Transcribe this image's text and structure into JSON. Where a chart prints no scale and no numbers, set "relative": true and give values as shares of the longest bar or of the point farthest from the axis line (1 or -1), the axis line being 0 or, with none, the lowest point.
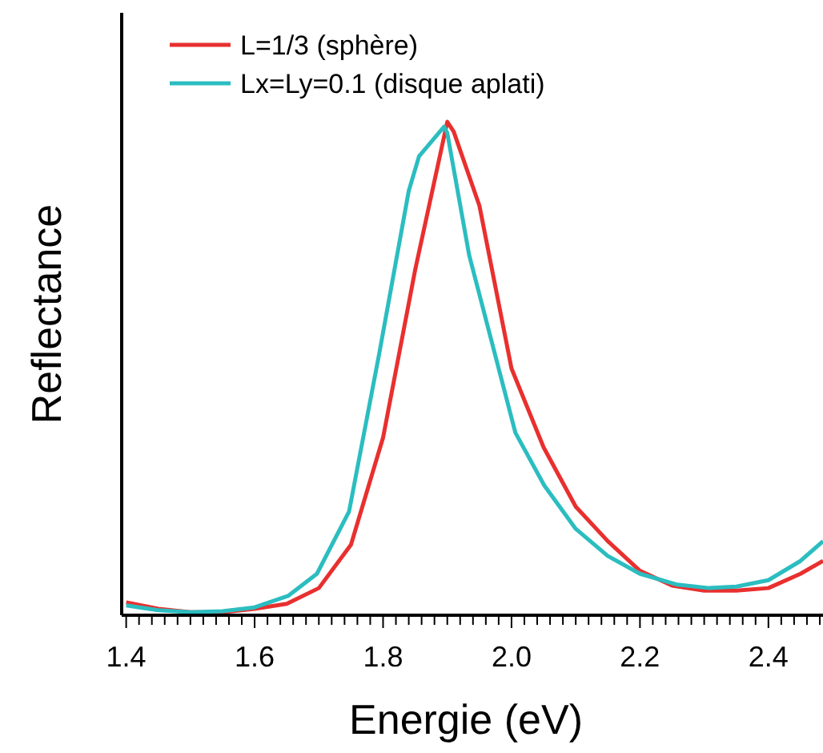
{
  "chart_data": {
    "type": "line",
    "relative": true,
    "xlabel": "Energie (eV)",
    "ylabel": "Reflectance",
    "legend": "top left",
    "grid": false,
    "marker": "none",
    "line_style": "solid",
    "xlim": [
      1.393,
      2.485
    ],
    "xticks": [
      1.4,
      {
        "value": 1.42,
        "label": null
      },
      {
        "value": 1.44,
        "label": null
      },
      {
        "value": 1.46,
        "label": null
      },
      {
        "value": 1.48,
        "label": null
      },
      {
        "value": 1.5,
        "label": null
      },
      {
        "value": 1.52,
        "label": null
      },
      {
        "value": 1.54,
        "label": null
      },
      {
        "value": 1.56,
        "label": null
      },
      {
        "value": 1.58,
        "label": null
      },
      1.6,
      {
        "value": 1.62,
        "label": null
      },
      {
        "value": 1.64,
        "label": null
      },
      {
        "value": 1.66,
        "label": null
      },
      {
        "value": 1.68,
        "label": null
      },
      {
        "value": 1.7,
        "label": null
      },
      {
        "value": 1.72,
        "label": null
      },
      {
        "value": 1.74,
        "label": null
      },
      {
        "value": 1.76,
        "label": null
      },
      {
        "value": 1.78,
        "label": null
      },
      1.8,
      {
        "value": 1.82,
        "label": null
      },
      {
        "value": 1.84,
        "label": null
      },
      {
        "value": 1.86,
        "label": null
      },
      {
        "value": 1.88,
        "label": null
      },
      {
        "value": 1.9,
        "label": null
      },
      {
        "value": 1.92,
        "label": null
      },
      {
        "value": 1.94,
        "label": null
      },
      {
        "value": 1.96,
        "label": null
      },
      {
        "value": 1.98,
        "label": null
      },
      {
        "value": 2.0,
        "label": "2.0"
      },
      {
        "value": 2.02,
        "label": null
      },
      {
        "value": 2.04,
        "label": null
      },
      {
        "value": 2.06,
        "label": null
      },
      {
        "value": 2.08,
        "label": null
      },
      {
        "value": 2.1,
        "label": null
      },
      {
        "value": 2.12,
        "label": null
      },
      {
        "value": 2.14,
        "label": null
      },
      {
        "value": 2.16,
        "label": null
      },
      {
        "value": 2.18,
        "label": null
      },
      2.2,
      {
        "value": 2.22,
        "label": null
      },
      {
        "value": 2.24,
        "label": null
      },
      {
        "value": 2.26,
        "label": null
      },
      {
        "value": 2.28,
        "label": null
      },
      {
        "value": 2.3,
        "label": null
      },
      {
        "value": 2.32,
        "label": null
      },
      {
        "value": 2.34,
        "label": null
      },
      {
        "value": 2.36,
        "label": null
      },
      {
        "value": 2.38,
        "label": null
      },
      2.4,
      {
        "value": 2.42,
        "label": null
      },
      {
        "value": 2.44,
        "label": null
      },
      {
        "value": 2.46,
        "label": null
      },
      {
        "value": 2.48,
        "label": null
      }
    ],
    "series": [
      {
        "name": "L=1/3 (sphère)",
        "color": "#e8302f",
        "x": [
          1.4,
          1.45,
          1.5,
          1.55,
          1.6,
          1.65,
          1.7,
          1.75,
          1.8,
          1.85,
          1.9,
          1.91,
          1.95,
          2.0,
          2.05,
          2.1,
          2.15,
          2.2,
          2.25,
          2.3,
          2.35,
          2.4,
          2.45,
          2.485
        ],
        "values": [
          0.026,
          0.013,
          0.006,
          0.006,
          0.013,
          0.023,
          0.055,
          0.143,
          0.36,
          0.7,
          1,
          0.98,
          0.83,
          0.5,
          0.34,
          0.22,
          0.15,
          0.09,
          0.06,
          0.05,
          0.05,
          0.055,
          0.084,
          0.11
        ]
      },
      {
        "name": "Lx=Ly=0.1 (disque aplati)",
        "color": "#2bbdc0",
        "x": [
          1.4,
          1.45,
          1.5,
          1.55,
          1.6,
          1.652,
          1.697,
          1.747,
          1.794,
          1.84,
          1.856,
          1.895,
          1.9,
          1.934,
          1.969,
          2.006,
          2.051,
          2.1,
          2.15,
          2.2,
          2.258,
          2.308,
          2.35,
          2.4,
          2.45,
          2.485
        ],
        "values": [
          0.02,
          0.01,
          0.006,
          0.008,
          0.016,
          0.039,
          0.084,
          0.21,
          0.53,
          0.86,
          0.93,
          0.99,
          0.977,
          0.73,
          0.555,
          0.37,
          0.263,
          0.175,
          0.12,
          0.084,
          0.062,
          0.055,
          0.058,
          0.071,
          0.11,
          0.15
        ]
      }
    ]
  }
}
